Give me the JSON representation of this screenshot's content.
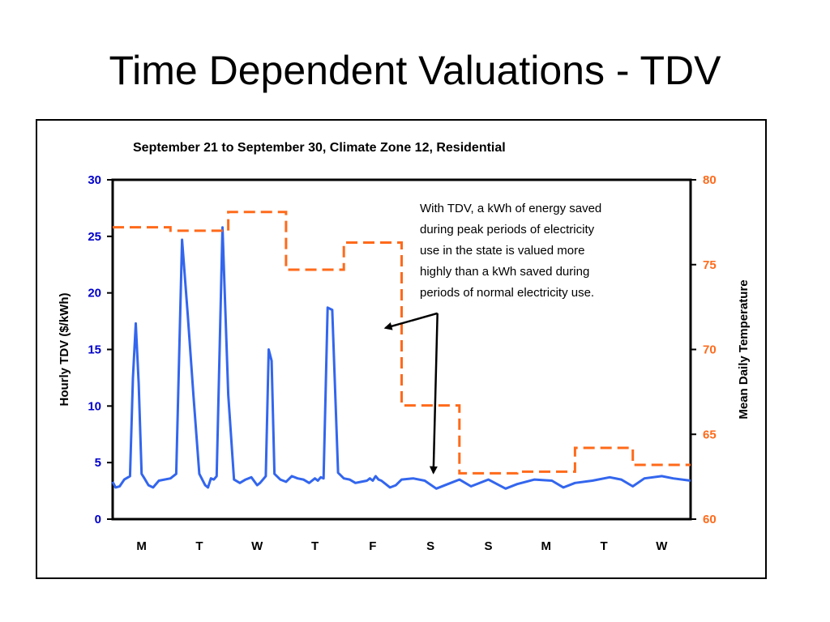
{
  "slide": {
    "title": "Time Dependent Valuations - TDV"
  },
  "chart_data": {
    "type": "line",
    "title": "September 21 to September 30, Climate Zone 12, Residential",
    "ylabel": "Hourly TDV ($/kWh)",
    "y2label": "Mean Daily Temperature",
    "ylim": [
      0,
      30
    ],
    "y2lim": [
      60,
      80
    ],
    "yticks": [
      "0",
      "5",
      "10",
      "15",
      "20",
      "25",
      "30"
    ],
    "y2ticks": [
      "60",
      "65",
      "70",
      "75",
      "80"
    ],
    "categories": [
      "M",
      "T",
      "W",
      "T",
      "F",
      "S",
      "S",
      "M",
      "T",
      "W"
    ],
    "grid": false,
    "series": [
      {
        "axis": "left",
        "color": "#3366ee",
        "style": "solid",
        "x": [
          0,
          0.05,
          0.12,
          0.2,
          0.3,
          0.35,
          0.4,
          0.45,
          0.5,
          0.55,
          0.62,
          0.7,
          0.8,
          1,
          1.1,
          1.2,
          1.3,
          1.4,
          1.5,
          1.55,
          1.6,
          1.65,
          1.7,
          1.75,
          1.8,
          1.9,
          2,
          2.1,
          2.2,
          2.3,
          2.4,
          2.5,
          2.55,
          2.6,
          2.65,
          2.7,
          2.75,
          2.8,
          2.9,
          3,
          3.1,
          3.2,
          3.3,
          3.4,
          3.5,
          3.55,
          3.6,
          3.65,
          3.72,
          3.8,
          3.9,
          4,
          4.1,
          4.2,
          4.3,
          4.4,
          4.45,
          4.5,
          4.55,
          4.6,
          4.65,
          4.7,
          4.8,
          4.9,
          5,
          5.2,
          5.4,
          5.6,
          5.8,
          6,
          6.2,
          6.5,
          6.8,
          7,
          7.3,
          7.6,
          7.8,
          8,
          8.3,
          8.6,
          8.8,
          9,
          9.2,
          9.5,
          9.7,
          10
        ],
        "values": [
          3.3,
          2.8,
          2.9,
          3.5,
          3.8,
          12.5,
          17.3,
          12,
          4,
          3.6,
          3,
          2.8,
          3.4,
          3.6,
          4,
          24.7,
          18,
          10.8,
          4,
          3.5,
          3,
          2.8,
          3.6,
          3.5,
          3.8,
          25.8,
          11,
          3.5,
          3.2,
          3.5,
          3.7,
          3,
          3.2,
          3.5,
          3.8,
          15,
          14,
          4,
          3.5,
          3.3,
          3.8,
          3.6,
          3.5,
          3.2,
          3.6,
          3.4,
          3.7,
          3.6,
          18.7,
          18.5,
          4.1,
          3.6,
          3.5,
          3.2,
          3.3,
          3.4,
          3.6,
          3.4,
          3.8,
          3.5,
          3.4,
          3.2,
          2.8,
          3,
          3.5,
          3.6,
          3.4,
          2.7,
          3.1,
          3.5,
          2.9,
          3.5,
          2.7,
          3.1,
          3.5,
          3.4,
          2.8,
          3.2,
          3.4,
          3.7,
          3.5,
          2.9,
          3.6,
          3.8,
          3.6,
          3.4
        ]
      },
      {
        "axis": "right",
        "color": "#ff6a1a",
        "style": "dashed",
        "step": [
          {
            "start": 0,
            "end": 1,
            "value": 77.2
          },
          {
            "start": 1,
            "end": 2,
            "value": 77.0
          },
          {
            "start": 2,
            "end": 3,
            "value": 78.1
          },
          {
            "start": 3,
            "end": 4,
            "value": 74.7
          },
          {
            "start": 4,
            "end": 5,
            "value": 76.3
          },
          {
            "start": 5,
            "end": 6,
            "value": 66.7
          },
          {
            "start": 6,
            "end": 7,
            "value": 62.7
          },
          {
            "start": 7,
            "end": 8,
            "value": 62.8
          },
          {
            "start": 8,
            "end": 9,
            "value": 64.2
          },
          {
            "start": 9,
            "end": 10,
            "value": 63.2
          }
        ]
      }
    ],
    "annotation": {
      "lines": [
        "With TDV, a kWh of energy saved",
        "during peak periods of electricity",
        "use in the state is valued more",
        "highly than a kWh saved during",
        "periods of normal electricity use."
      ],
      "arrow_targets": [
        {
          "x": 4.72,
          "y": 16.9
        },
        {
          "x": 5.55,
          "y": 4.1
        }
      ],
      "arrow_origin": {
        "x": 5.62,
        "y": 18.2
      }
    }
  }
}
